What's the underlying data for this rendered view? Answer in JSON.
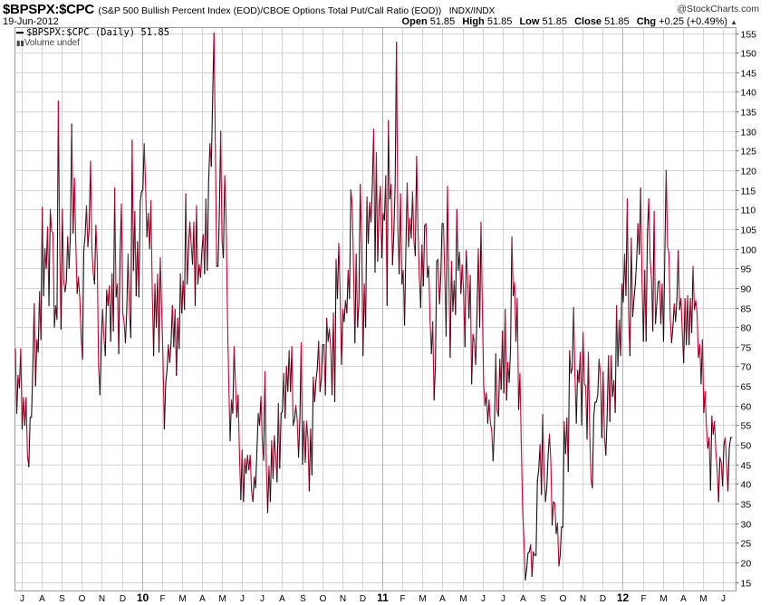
{
  "header": {
    "symbol": "$BPSPX:$CPC",
    "description": "(S&P 500 Bullish Percent Index (EOD)/CBOE Options Total Put/Call Ratio (EOD))",
    "exchange": "INDX/INDX",
    "copyright": "@StockCharts.com",
    "date": "19-Jun-2012",
    "open_label": "Open",
    "open": "51.85",
    "high_label": "High",
    "high": "51.85",
    "low_label": "Low",
    "low": "51.85",
    "close_label": "Close",
    "close": "51.85",
    "chg_label": "Chg",
    "chg": "+0.25 (+0.49%)"
  },
  "legend": {
    "series_label": "$BPSPX:$CPC (Daily) 51.85",
    "volume_label": "Volume undef"
  },
  "colors": {
    "up": "#111111",
    "down": "#cc0033",
    "grid": "#d4d4d4",
    "year_grid": "#b4b4b4"
  },
  "chart_data": {
    "type": "line",
    "title": "$BPSPX:$CPC (Daily)",
    "xlabel": "",
    "ylabel": "",
    "ylim": [
      12.7,
      156.4
    ],
    "y_ticks": [
      15,
      20,
      25,
      30,
      35,
      40,
      45,
      50,
      55,
      60,
      65,
      70,
      75,
      80,
      85,
      90,
      95,
      100,
      105,
      110,
      115,
      120,
      125,
      130,
      135,
      140,
      145,
      150,
      155
    ],
    "x_ticks": [
      {
        "label": "J",
        "year": false
      },
      {
        "label": "A",
        "year": false
      },
      {
        "label": "S",
        "year": false
      },
      {
        "label": "O",
        "year": false
      },
      {
        "label": "N",
        "year": false
      },
      {
        "label": "D",
        "year": false
      },
      {
        "label": "10",
        "year": true
      },
      {
        "label": "F",
        "year": false
      },
      {
        "label": "M",
        "year": false
      },
      {
        "label": "A",
        "year": false
      },
      {
        "label": "M",
        "year": false
      },
      {
        "label": "J",
        "year": false
      },
      {
        "label": "J",
        "year": false
      },
      {
        "label": "A",
        "year": false
      },
      {
        "label": "S",
        "year": false
      },
      {
        "label": "O",
        "year": false
      },
      {
        "label": "N",
        "year": false
      },
      {
        "label": "D",
        "year": false
      },
      {
        "label": "11",
        "year": true
      },
      {
        "label": "F",
        "year": false
      },
      {
        "label": "M",
        "year": false
      },
      {
        "label": "A",
        "year": false
      },
      {
        "label": "M",
        "year": false
      },
      {
        "label": "J",
        "year": false
      },
      {
        "label": "J",
        "year": false
      },
      {
        "label": "A",
        "year": false
      },
      {
        "label": "S",
        "year": false
      },
      {
        "label": "O",
        "year": false
      },
      {
        "label": "N",
        "year": false
      },
      {
        "label": "D",
        "year": false
      },
      {
        "label": "12",
        "year": true
      },
      {
        "label": "F",
        "year": false
      },
      {
        "label": "M",
        "year": false
      },
      {
        "label": "A",
        "year": false
      },
      {
        "label": "M",
        "year": false
      },
      {
        "label": "J",
        "year": false
      }
    ],
    "grid": true,
    "legend": "top-left",
    "values": [
      74.5,
      58,
      67.7,
      64.5,
      74.5,
      54,
      62,
      55,
      62,
      47.3,
      44.4,
      57,
      57,
      70,
      86,
      65,
      76.8,
      73.6,
      89,
      76.8,
      110.5,
      88,
      100,
      95,
      105.5,
      85.5,
      110,
      104.5,
      104,
      80,
      85.5,
      82,
      137.7,
      101.8,
      79.5,
      110,
      91.8,
      89,
      91.8,
      103,
      95,
      103.6,
      131.8,
      104,
      118,
      101.4,
      88.6,
      92.7,
      87.3,
      77.3,
      71.8,
      99.5,
      103.6,
      111,
      100.5,
      105.5,
      122.3,
      100,
      93.6,
      91,
      106,
      97.3,
      70,
      62.7,
      76.4,
      84.5,
      77.3,
      72.7,
      89.5,
      85.5,
      90.5,
      76.4,
      93.6,
      79,
      115.5,
      87.7,
      91,
      73.2,
      98.2,
      111.4,
      83.6,
      81.4,
      76,
      84.5,
      98.6,
      83.6,
      77.3,
      127.7,
      94.5,
      109.5,
      88,
      101.8,
      87.7,
      111.8,
      114.5,
      115,
      126.8,
      116.4,
      103,
      109,
      100,
      112.3,
      89,
      72.7,
      91,
      80,
      93.6,
      73.6,
      97.7,
      84.5,
      71.8,
      54,
      65.5,
      69,
      75.5,
      71,
      76,
      85.5,
      75,
      84.5,
      67.7,
      82.3,
      74.5,
      93.6,
      83.6,
      91.8,
      84.5,
      114,
      91,
      99.5,
      106.8,
      101,
      96,
      106.8,
      85.5,
      111,
      91,
      96,
      92.7,
      99.5,
      103.6,
      93.6,
      112.7,
      94.5,
      117.3,
      126.8,
      121,
      138.2,
      155,
      126.4,
      95.5,
      95.5,
      109,
      130,
      101.8,
      97.7,
      118.6,
      108,
      83.6,
      65.5,
      51,
      61.4,
      58,
      75,
      65.5,
      57,
      62.7,
      47.3,
      36,
      48.6,
      35.5,
      46.4,
      42.7,
      47.3,
      43.6,
      47.3,
      38.2,
      35.5,
      41.8,
      39,
      48.6,
      58,
      55,
      62.3,
      51,
      46,
      68.6,
      44.5,
      32.7,
      44.5,
      35.5,
      51,
      41.4,
      52.3,
      47.3,
      40.5,
      60.5,
      44,
      58,
      58.5,
      68.2,
      56.8,
      70,
      63.6,
      74,
      63.6,
      75,
      55,
      56.4,
      60,
      56.4,
      46.8,
      56.4,
      76,
      45,
      56,
      45.5,
      56,
      51.8,
      38.2,
      54,
      42.3,
      67.3,
      61,
      66.4,
      69.5,
      76.4,
      63.6,
      66.8,
      75.5,
      75.5,
      62.7,
      82.3,
      76.4,
      79.5,
      74.5,
      62.7,
      83.6,
      61,
      97.3,
      87.3,
      101.4,
      89,
      70.5,
      84.5,
      81.4,
      86.8,
      83.6,
      94.5,
      87.3,
      115,
      111,
      95,
      76,
      98.6,
      80,
      86.4,
      116.4,
      101.8,
      72.7,
      91,
      80,
      113.2,
      101.4,
      111.8,
      106.8,
      115.9,
      130.5,
      94,
      124.5,
      96.8,
      110,
      115.9,
      97.7,
      109,
      107.3,
      118.6,
      85.5,
      132.7,
      112.7,
      116.4,
      95.9,
      104,
      116.4,
      152.7,
      105.5,
      93.6,
      114,
      91,
      94.5,
      80.5,
      100,
      116.8,
      100.5,
      107.7,
      102.7,
      114.5,
      101.8,
      98.2,
      123.6,
      105.5,
      92.7,
      85,
      100.9,
      90.5,
      105.9,
      106.4,
      92.7,
      95.5,
      81.8,
      73.2,
      81.4,
      61.4,
      70,
      96.8,
      97.3,
      85.9,
      92.7,
      106.4,
      106.4,
      92.7,
      77.7,
      115.9,
      93.2,
      72.3,
      96.8,
      84,
      91.8,
      83.2,
      110,
      94.5,
      99.1,
      88.6,
      95.9,
      89,
      75,
      99.5,
      92.7,
      82.3,
      93.2,
      65.5,
      78.2,
      76.4,
      70.5,
      83.6,
      100,
      80,
      106.8,
      84.5,
      65,
      60,
      63.2,
      55.5,
      61.4,
      55.5,
      53.6,
      45.9,
      54.5,
      73.2,
      58.6,
      57.3,
      71.8,
      64.1,
      79,
      63.2,
      84.5,
      61.4,
      71,
      65.9,
      74.5,
      103,
      88,
      91.4,
      76.4,
      87.3,
      59,
      68.2,
      50,
      33.6,
      25.5,
      15.5,
      18.2,
      22.3,
      22.7,
      24.5,
      16.4,
      22.7,
      21.8,
      21.8,
      40.9,
      43.6,
      50,
      37.3,
      57.7,
      42.7,
      35.5,
      39,
      47.3,
      52.7,
      45.9,
      29.5,
      35.5,
      35,
      27.3,
      30,
      19.1,
      21.8,
      29,
      29,
      55.9,
      47.7,
      56.8,
      43.2,
      74,
      68.2,
      69.5,
      85,
      67.7,
      55.5,
      69,
      65.9,
      73.6,
      55,
      78.6,
      65.5,
      65,
      51.4,
      73.6,
      53.6,
      40.9,
      39,
      57.3,
      60.9,
      60.9,
      62.7,
      71.8,
      68.2,
      51.8,
      68.6,
      51.8,
      47.3,
      57.3,
      72.7,
      55.9,
      72.7,
      62.3,
      66.4,
      58.2,
      85.5,
      70,
      81.8,
      72.7,
      91,
      86.4,
      98.6,
      88,
      112.7,
      82.7,
      72.7,
      102.7,
      82.7,
      87.3,
      91,
      97.3,
      106.4,
      98.6,
      115.5,
      91.4,
      76.4,
      94.5,
      76.4,
      103.6,
      112.7,
      97.3,
      92.7,
      79,
      109.5,
      80.9,
      85.9,
      91.4,
      91.8,
      80.9,
      91,
      76.4,
      99.5,
      120,
      100.5,
      99.1,
      82.3,
      76,
      80,
      85.9,
      81.4,
      87.3,
      99.5,
      84.5,
      87.3,
      78.6,
      70.9,
      87.3,
      75.5,
      88,
      75.5,
      87.3,
      78.6,
      95.5,
      84.5,
      86.8,
      83.6,
      72.3,
      75.5,
      65.5,
      76.8,
      58.2,
      63.6,
      54.5,
      49.1,
      51.8,
      38.4,
      57.3,
      52.7,
      55.9,
      48.2,
      43.6,
      35.5,
      46.8,
      45.5,
      39.5,
      50,
      51.8,
      45,
      38.2,
      49.1,
      51.8,
      51.85
    ]
  }
}
